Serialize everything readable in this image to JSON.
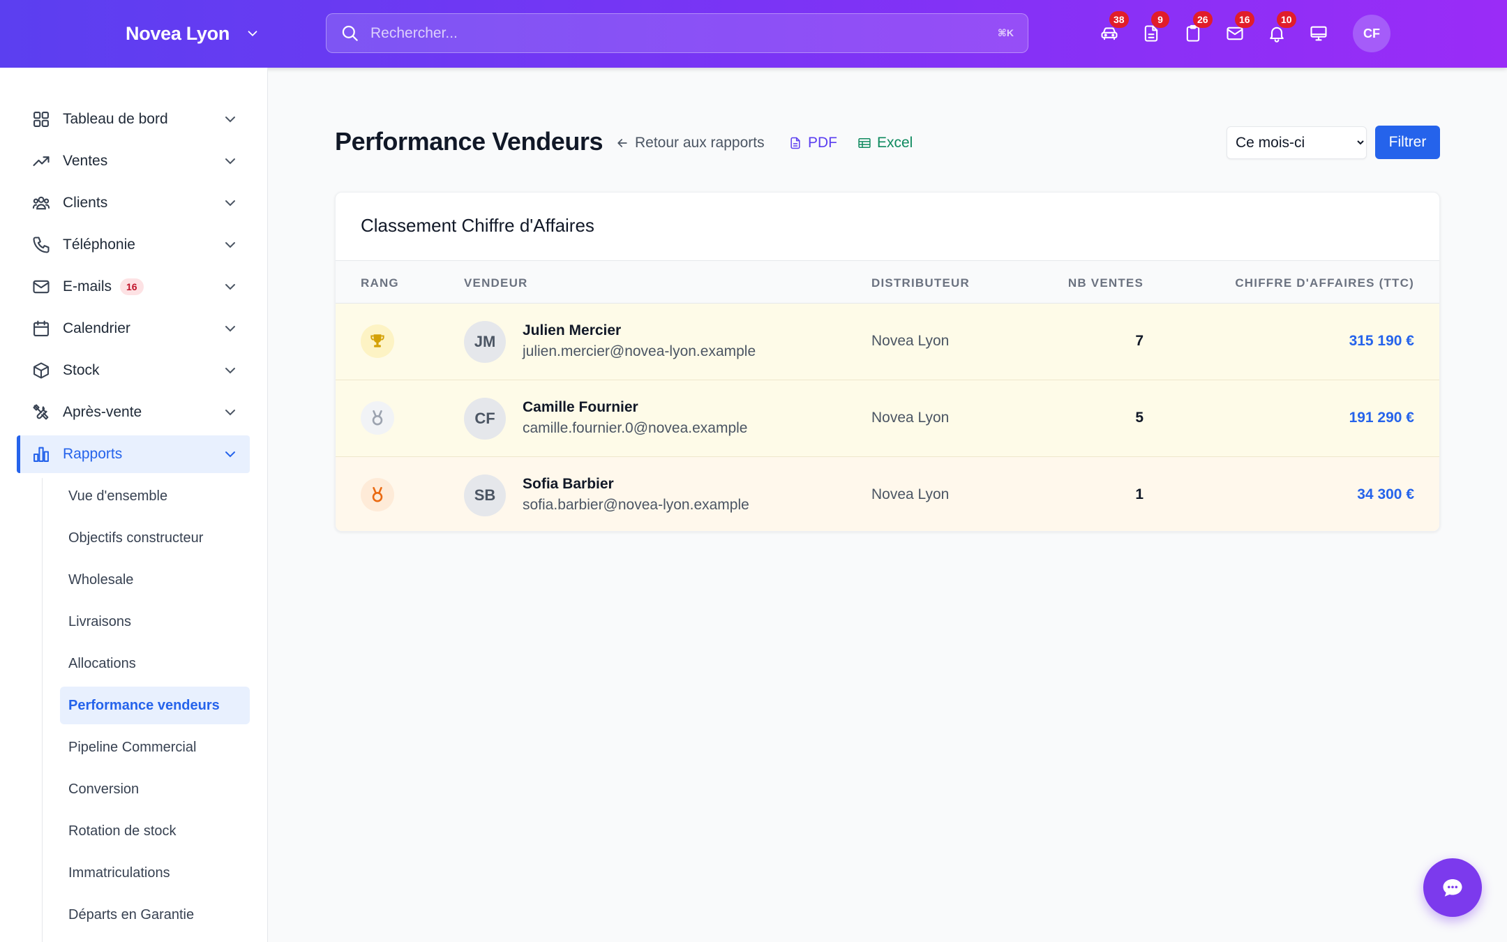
{
  "header": {
    "brand": "Novea Lyon",
    "search_placeholder": "Rechercher...",
    "search_shortcut": "⌘K",
    "icons": [
      {
        "name": "car-icon",
        "badge": "38"
      },
      {
        "name": "document-icon",
        "badge": "9"
      },
      {
        "name": "clipboard-icon",
        "badge": "26"
      },
      {
        "name": "mail-icon",
        "badge": "16"
      },
      {
        "name": "bell-icon",
        "badge": "10"
      },
      {
        "name": "monitor-icon",
        "badge": ""
      }
    ],
    "user_initials": "CF"
  },
  "sidebar": {
    "items": [
      {
        "label": "Tableau de bord",
        "icon": "grid-icon"
      },
      {
        "label": "Ventes",
        "icon": "trending-up-icon"
      },
      {
        "label": "Clients",
        "icon": "users-icon"
      },
      {
        "label": "Téléphonie",
        "icon": "phone-icon"
      },
      {
        "label": "E-mails",
        "icon": "mail-icon",
        "badge": "16"
      },
      {
        "label": "Calendrier",
        "icon": "calendar-icon"
      },
      {
        "label": "Stock",
        "icon": "box-icon"
      },
      {
        "label": "Après-vente",
        "icon": "tools-icon"
      },
      {
        "label": "Rapports",
        "icon": "bar-chart-icon",
        "active": true
      }
    ],
    "sub_items": [
      "Vue d'ensemble",
      "Objectifs constructeur",
      "Wholesale",
      "Livraisons",
      "Allocations",
      "Performance vendeurs",
      "Pipeline Commercial",
      "Conversion",
      "Rotation de stock",
      "Immatriculations",
      "Départs en Garantie"
    ],
    "active_sub": "Performance vendeurs"
  },
  "page": {
    "title": "Performance Vendeurs",
    "back_link": "Retour aux rapports",
    "pdf_label": "PDF",
    "excel_label": "Excel",
    "period_selected": "Ce mois-ci",
    "filter_label": "Filtrer",
    "colors": {
      "accent": "#2563eb",
      "pdf": "#5b3ff0",
      "excel": "#0f8a5f"
    }
  },
  "table": {
    "title": "Classement Chiffre d'Affaires",
    "columns": [
      "RANG",
      "VENDEUR",
      "DISTRIBUTEUR",
      "NB VENTES",
      "CHIFFRE D'AFFAIRES (TTC)"
    ],
    "rows": [
      {
        "rank_icon": "trophy-icon",
        "initials": "JM",
        "name": "Julien Mercier",
        "email": "julien.mercier@novea-lyon.example",
        "distributor": "Novea Lyon",
        "sales": "7",
        "revenue": "315 190 €",
        "row_color": "#fefbe8",
        "icon_bg": "#fdf3c4",
        "icon_color": "#d4a106"
      },
      {
        "rank_icon": "medal-icon",
        "initials": "CF",
        "name": "Camille Fournier",
        "email": "camille.fournier.0@novea.example",
        "distributor": "Novea Lyon",
        "sales": "5",
        "revenue": "191 290 €",
        "row_color": "#fefbe8",
        "icon_bg": "#f1f3f6",
        "icon_color": "#9ca3af"
      },
      {
        "rank_icon": "medal-icon",
        "initials": "SB",
        "name": "Sofia Barbier",
        "email": "sofia.barbier@novea-lyon.example",
        "distributor": "Novea Lyon",
        "sales": "1",
        "revenue": "34 300 €",
        "row_color": "#fff8ec",
        "icon_bg": "#feebd8",
        "icon_color": "#ea6a12"
      }
    ]
  }
}
